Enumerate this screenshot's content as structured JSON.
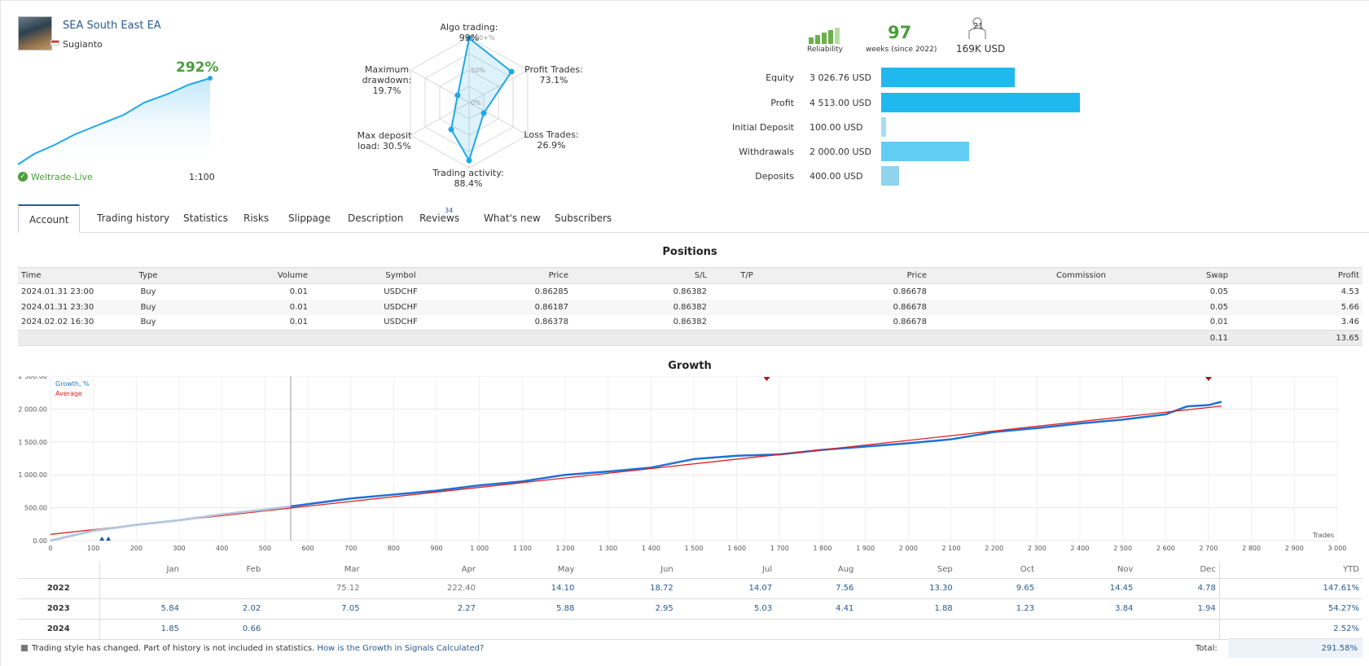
{
  "signal": {
    "name": "SEA South East EA",
    "author": "Sugianto",
    "growth": "292%",
    "broker": "Weltrade-Live",
    "leverage": "1:100"
  },
  "radar": {
    "algo": "Algo trading: 99%",
    "profit_trades_1": "Profit Trades:",
    "profit_trades_2": "73.1%",
    "loss_trades_1": "Loss Trades:",
    "loss_trades_2": "26.9%",
    "activity": "Trading activity: 88.4%",
    "deposit_load_1": "Max deposit",
    "deposit_load_2": "load: 30.5%",
    "drawdown_1": "Maximum",
    "drawdown_2": "drawdown:",
    "drawdown_3": "19.7%",
    "tick_100": "100+%",
    "tick_50": "50%",
    "tick_0": "0%"
  },
  "stats": {
    "reliability_label": "Reliability",
    "weeks": "97",
    "weeks_sub": "weeks (since 2022)",
    "subscribers": "21",
    "subscriber_funds": "169K USD",
    "balances": [
      {
        "label": "Equity",
        "value": "3 026.76 USD",
        "amount": 3026.76,
        "color": "#1fb8ef"
      },
      {
        "label": "Profit",
        "value": "4 513.00 USD",
        "amount": 4513.0,
        "color": "#1fb8ef"
      },
      {
        "label": "Initial Deposit",
        "value": "100.00 USD",
        "amount": 100.0,
        "color": "#a8def5"
      },
      {
        "label": "Withdrawals",
        "value": "2 000.00 USD",
        "amount": 2000.0,
        "color": "#62cdf3"
      },
      {
        "label": "Deposits",
        "value": "400.00 USD",
        "amount": 400.0,
        "color": "#8fd3ee"
      }
    ]
  },
  "tabs": [
    "Account",
    "Trading history",
    "Statistics",
    "Risks",
    "Slippage",
    "Description",
    "Reviews",
    "What's new",
    "Subscribers"
  ],
  "tab_reviews_badge": "34",
  "positions": {
    "title": "Positions",
    "headers": [
      "Time",
      "Type",
      "Volume",
      "Symbol",
      "Price",
      "S/L",
      "T/P",
      "Price",
      "Commission",
      "Swap",
      "Profit"
    ],
    "rows": [
      [
        "2024.01.31 23:00",
        "Buy",
        "0.01",
        "USDCHF",
        "0.86285",
        "0.86382",
        "",
        "0.86678",
        "",
        "0.05",
        "4.53"
      ],
      [
        "2024.01.31 23:30",
        "Buy",
        "0.01",
        "USDCHF",
        "0.86187",
        "0.86382",
        "",
        "0.86678",
        "",
        "0.05",
        "5.66"
      ],
      [
        "2024.02.02 16:30",
        "Buy",
        "0.01",
        "USDCHF",
        "0.86378",
        "0.86382",
        "",
        "0.86678",
        "",
        "0.01",
        "3.46"
      ]
    ],
    "total_swap": "0.11",
    "total_profit": "13.65"
  },
  "growth_title": "Growth",
  "chart_data": {
    "type": "line",
    "legend": [
      "Growth, %",
      "Average"
    ],
    "xlabel": "Trades",
    "x_ticks": [
      "0",
      "100",
      "200",
      "300",
      "400",
      "500",
      "600",
      "700",
      "800",
      "900",
      "1 000",
      "1 100",
      "1 200",
      "1 300",
      "1 400",
      "1 500",
      "1 600",
      "1 700",
      "1 800",
      "1 900",
      "2 000",
      "2 100",
      "2 200",
      "2 300",
      "2 400",
      "2 500",
      "2 600",
      "2 700",
      "2 800",
      "2 900",
      "3 000"
    ],
    "y_ticks": [
      "0.00",
      "500.00",
      "1 000.00",
      "1 500.00",
      "2 000.00",
      "2 500.00"
    ],
    "xlim": [
      0,
      3000
    ],
    "ylim": [
      0,
      2500
    ],
    "series": [
      {
        "name": "Growth, %",
        "color": "#1e6fd9",
        "x": [
          0,
          100,
          200,
          300,
          400,
          500,
          560,
          700,
          800,
          900,
          1000,
          1100,
          1200,
          1300,
          1400,
          1500,
          1600,
          1700,
          1800,
          1900,
          2000,
          2100,
          2200,
          2300,
          2400,
          2500,
          2600,
          2650,
          2700,
          2730
        ],
        "values": [
          0,
          150,
          240,
          310,
          400,
          470,
          520,
          640,
          700,
          760,
          840,
          900,
          1000,
          1050,
          1110,
          1240,
          1290,
          1310,
          1380,
          1430,
          1480,
          1540,
          1650,
          1710,
          1780,
          1840,
          1920,
          2040,
          2060,
          2110
        ]
      },
      {
        "name": "Average",
        "color": "#e02020",
        "x": [
          0,
          2730
        ],
        "values": [
          95,
          2045
        ]
      }
    ],
    "markers_x": [
      1670,
      2700
    ]
  },
  "yearly": {
    "months": [
      "Jan",
      "Feb",
      "Mar",
      "Apr",
      "May",
      "Jun",
      "Jul",
      "Aug",
      "Sep",
      "Oct",
      "Nov",
      "Dec",
      "YTD"
    ],
    "rows": [
      {
        "year": "2022",
        "values": [
          "",
          "",
          "75.12",
          "222.40",
          "14.10",
          "18.72",
          "14.07",
          "7.56",
          "13.30",
          "9.65",
          "14.45",
          "4.78",
          "147.61%"
        ]
      },
      {
        "year": "2023",
        "values": [
          "5.84",
          "2.02",
          "7.05",
          "2.27",
          "5.88",
          "2.95",
          "5.03",
          "4.41",
          "1.88",
          "1.23",
          "3.84",
          "1.94",
          "54.27%"
        ]
      },
      {
        "year": "2024",
        "values": [
          "1.85",
          "0.66",
          "",
          "",
          "",
          "",
          "",
          "",
          "",
          "",
          "",
          "",
          "2.52%"
        ]
      }
    ],
    "total_label": "Total:",
    "total_value": "291.58%"
  },
  "footer": {
    "note": "Trading style has changed. Part of history is not included in statistics.",
    "link": "How is the Growth in Signals Calculated?"
  }
}
